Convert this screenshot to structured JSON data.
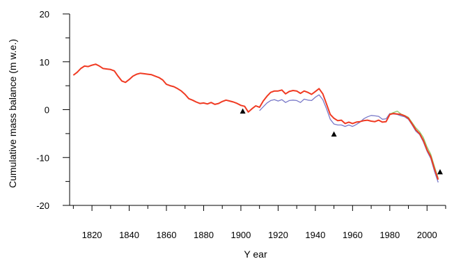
{
  "chart_data": {
    "type": "line",
    "title": "",
    "xlabel": "Y ear",
    "ylabel": "Cumulative mass balance (m w.e.)",
    "xlim": [
      1808,
      2010
    ],
    "ylim": [
      -20,
      20
    ],
    "x_ticks": [
      1820,
      1840,
      1860,
      1880,
      1900,
      1920,
      1940,
      1960,
      1980,
      2000
    ],
    "y_ticks": [
      -20,
      -10,
      0,
      10,
      20
    ],
    "y_minor_step": 5,
    "x_minor_step": 10,
    "grid": false,
    "legend": "none",
    "series": [
      {
        "color": "#f03a22",
        "x": [
          1810,
          1812,
          1814,
          1816,
          1818,
          1820,
          1822,
          1824,
          1826,
          1828,
          1830,
          1832,
          1834,
          1836,
          1838,
          1840,
          1842,
          1844,
          1846,
          1848,
          1850,
          1852,
          1854,
          1856,
          1858,
          1860,
          1862,
          1864,
          1866,
          1868,
          1870,
          1872,
          1874,
          1876,
          1878,
          1880,
          1882,
          1884,
          1886,
          1888,
          1890,
          1892,
          1894,
          1896,
          1898,
          1900,
          1902,
          1904,
          1906,
          1908,
          1910,
          1912,
          1914,
          1916,
          1918,
          1920,
          1922,
          1924,
          1926,
          1928,
          1930,
          1932,
          1934,
          1936,
          1938,
          1940,
          1942,
          1944,
          1946,
          1948,
          1950,
          1952,
          1954,
          1956,
          1958,
          1960,
          1962,
          1964,
          1966,
          1968,
          1970,
          1972,
          1974,
          1976,
          1978,
          1980,
          1982,
          1984,
          1986,
          1988,
          1990,
          1992,
          1994,
          1996,
          1998,
          2000,
          2002,
          2004,
          2006
        ],
        "y": [
          7.2,
          7.8,
          8.6,
          9.1,
          9.0,
          9.3,
          9.5,
          9.1,
          8.6,
          8.5,
          8.4,
          8.1,
          7.0,
          6.0,
          5.7,
          6.3,
          7.0,
          7.4,
          7.6,
          7.5,
          7.4,
          7.3,
          7.0,
          6.7,
          6.2,
          5.3,
          5.0,
          4.8,
          4.4,
          3.9,
          3.2,
          2.3,
          2.0,
          1.6,
          1.3,
          1.4,
          1.2,
          1.5,
          1.1,
          1.3,
          1.7,
          2.0,
          1.8,
          1.6,
          1.3,
          0.9,
          0.7,
          -0.5,
          0.2,
          0.8,
          0.5,
          1.8,
          2.8,
          3.6,
          3.9,
          3.9,
          4.1,
          3.3,
          3.8,
          4.0,
          3.9,
          3.4,
          3.9,
          3.6,
          3.2,
          3.8,
          4.4,
          3.3,
          1.2,
          -1.0,
          -1.8,
          -2.3,
          -2.2,
          -2.9,
          -2.6,
          -2.9,
          -2.6,
          -2.5,
          -2.3,
          -2.2,
          -2.4,
          -2.5,
          -2.2,
          -2.6,
          -2.5,
          -1.0,
          -0.8,
          -0.9,
          -1.0,
          -1.3,
          -1.8,
          -3.0,
          -4.2,
          -5.0,
          -6.4,
          -8.4,
          -9.8,
          -12.4,
          -14.6
        ]
      },
      {
        "color": "#7878c8",
        "x": [
          1910,
          1912,
          1914,
          1916,
          1918,
          1920,
          1922,
          1924,
          1926,
          1928,
          1930,
          1932,
          1934,
          1936,
          1938,
          1940,
          1942,
          1944,
          1946,
          1948,
          1950,
          1952,
          1954,
          1956,
          1958,
          1960,
          1962,
          1964,
          1966,
          1968,
          1970,
          1972,
          1974,
          1976,
          1978,
          1980,
          1982,
          1984,
          1986,
          1988,
          1990,
          1992,
          1994,
          1996,
          1998,
          2000,
          2002,
          2004,
          2006
        ],
        "y": [
          -0.2,
          0.6,
          1.4,
          1.9,
          2.1,
          1.8,
          2.1,
          1.5,
          1.9,
          2.0,
          1.9,
          1.5,
          2.2,
          2.0,
          1.9,
          2.6,
          3.1,
          2.1,
          0.2,
          -2.0,
          -3.0,
          -3.2,
          -3.2,
          -3.5,
          -3.2,
          -3.5,
          -3.1,
          -2.6,
          -1.9,
          -1.5,
          -1.2,
          -1.3,
          -1.4,
          -2.0,
          -1.9,
          -0.8,
          -0.9,
          -1.0,
          -1.3,
          -1.5,
          -2.0,
          -3.2,
          -4.5,
          -5.2,
          -6.7,
          -8.7,
          -10.2,
          -12.9,
          -15.2
        ]
      },
      {
        "color": "#8ec86a",
        "x": [
          1980,
          1982,
          1984,
          1986,
          1988,
          1990,
          1992,
          1994,
          1996,
          1998,
          2000,
          2002,
          2004,
          2006
        ],
        "y": [
          -0.9,
          -0.6,
          -0.3,
          -0.9,
          -1.2,
          -1.6,
          -2.7,
          -3.8,
          -4.6,
          -5.8,
          -7.8,
          -9.3,
          -11.9,
          -14.3
        ]
      }
    ],
    "markers": {
      "shape": "triangle",
      "color": "#000000",
      "points": [
        {
          "x": 1901,
          "y": -0.3
        },
        {
          "x": 1950,
          "y": -5.1
        },
        {
          "x": 2007,
          "y": -13.0
        }
      ]
    }
  }
}
